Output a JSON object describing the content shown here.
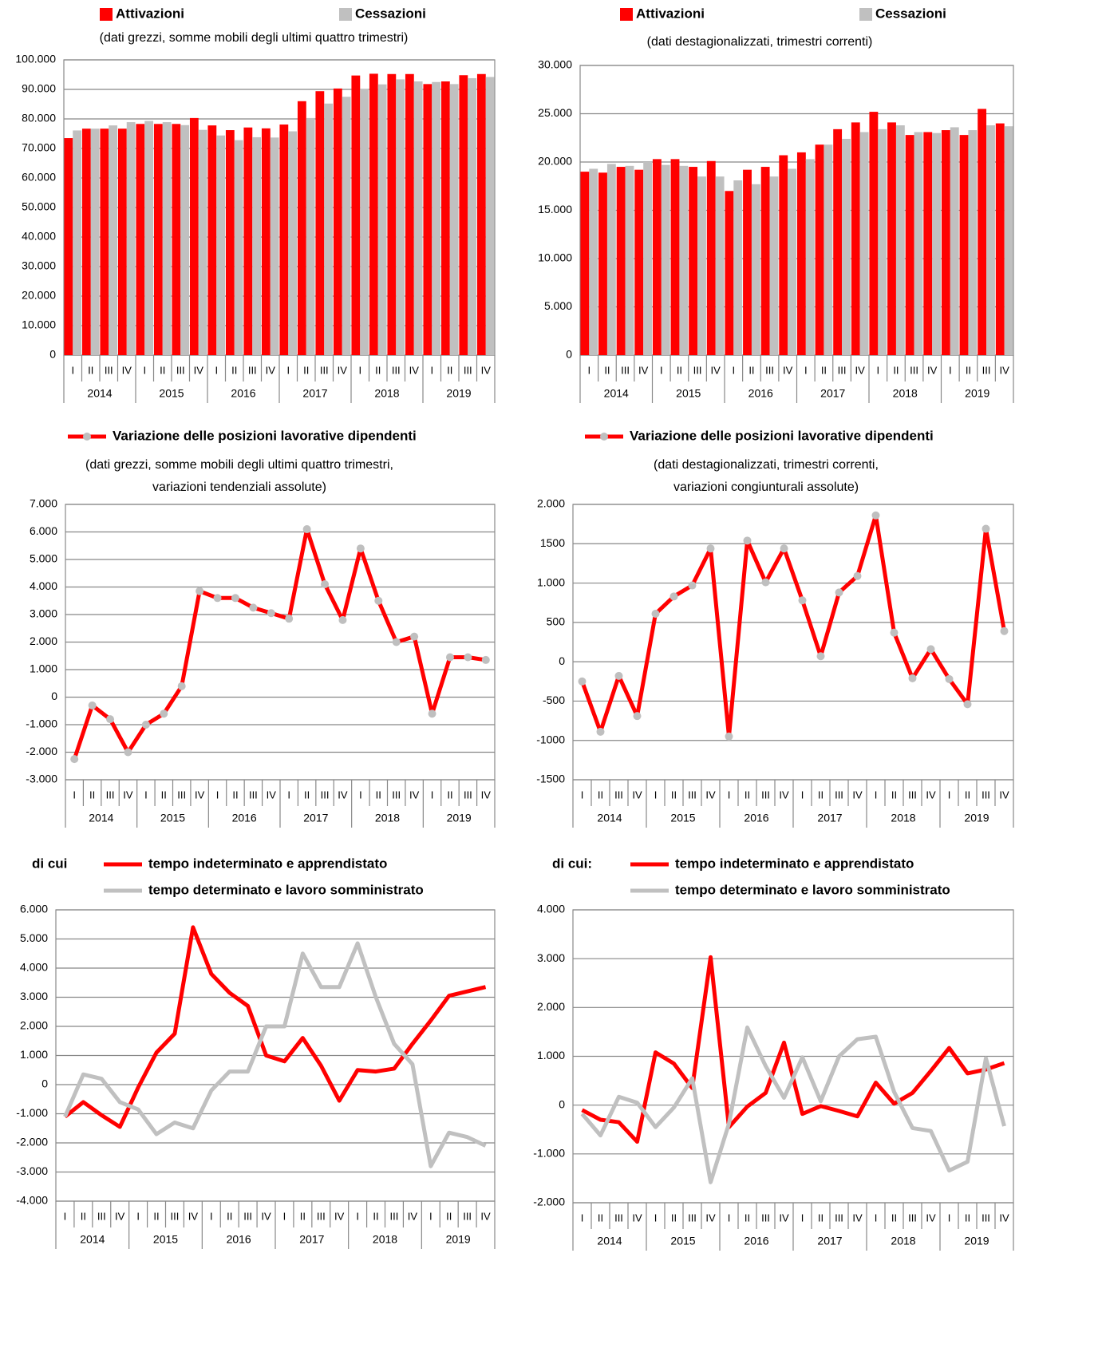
{
  "chart_data": [
    {
      "type": "bar",
      "subtitle": [
        "(dati grezzi, somme mobili degli ultimi quattro trimestri)"
      ],
      "categories": [
        "I",
        "II",
        "III",
        "IV",
        "I",
        "II",
        "III",
        "IV",
        "I",
        "II",
        "III",
        "IV",
        "I",
        "II",
        "III",
        "IV",
        "I",
        "II",
        "III",
        "IV",
        "I",
        "II",
        "III",
        "IV"
      ],
      "groups": [
        "2014",
        "2015",
        "2016",
        "2017",
        "2018",
        "2019"
      ],
      "series": [
        {
          "name": "Attivazioni",
          "color": "#ff0000",
          "values": [
            73500,
            76700,
            76700,
            76700,
            78300,
            78300,
            78300,
            80300,
            77800,
            76200,
            77100,
            76800,
            78100,
            86000,
            89400,
            90300,
            94700,
            95300,
            95200,
            95200,
            91800,
            92700,
            94800,
            95200
          ]
        },
        {
          "name": "Cessazioni",
          "color": "#c0c0c0",
          "values": [
            76100,
            76700,
            77800,
            78900,
            79300,
            78900,
            77900,
            76300,
            74400,
            72800,
            73800,
            73700,
            75800,
            80300,
            85200,
            87500,
            90100,
            91700,
            93400,
            92700,
            92500,
            91800,
            93800,
            94200
          ]
        }
      ],
      "ylim": [
        0,
        100000
      ],
      "yticks": [
        0,
        {
          "value": 10000,
          "label": "10.000"
        },
        {
          "value": 20000,
          "label": "20.000"
        },
        {
          "value": 30000,
          "label": "30.000"
        },
        {
          "value": 40000,
          "label": "40.000"
        },
        {
          "value": 50000,
          "label": "50.000"
        },
        {
          "value": 60000,
          "label": "60.000"
        },
        {
          "value": 70000,
          "label": "70.000"
        },
        {
          "value": 80000,
          "label": "80.000"
        },
        {
          "value": 90000,
          "label": "90.000"
        },
        {
          "value": 100000,
          "label": "100.000"
        }
      ],
      "grid": true
    },
    {
      "type": "bar",
      "subtitle": [
        "(dati destagionalizzati, trimestri correnti)"
      ],
      "categories": [
        "I",
        "II",
        "III",
        "IV",
        "I",
        "II",
        "III",
        "IV",
        "I",
        "II",
        "III",
        "IV",
        "I",
        "II",
        "III",
        "IV",
        "I",
        "II",
        "III",
        "IV",
        "I",
        "II",
        "III",
        "IV"
      ],
      "groups": [
        "2014",
        "2015",
        "2016",
        "2017",
        "2018",
        "2019"
      ],
      "series": [
        {
          "name": "Attivazioni",
          "color": "#ff0000",
          "values": [
            19000,
            18900,
            19500,
            19200,
            20300,
            20300,
            19500,
            20100,
            17000,
            19200,
            19500,
            20700,
            21000,
            21800,
            23400,
            24100,
            25200,
            24100,
            22800,
            23100,
            23300,
            22800,
            25500,
            24000
          ]
        },
        {
          "name": "Cessazioni",
          "color": "#c0c0c0",
          "values": [
            19300,
            19800,
            19600,
            20000,
            19700,
            19600,
            18500,
            18500,
            18100,
            17700,
            18500,
            19300,
            20300,
            21800,
            22400,
            23100,
            23400,
            23800,
            23100,
            23000,
            23600,
            23300,
            23800,
            23700
          ]
        }
      ],
      "ylim": [
        0,
        30000
      ],
      "yticks": [
        0,
        {
          "value": 5000,
          "label": "5.000"
        },
        {
          "value": 10000,
          "label": "10.000"
        },
        {
          "value": 15000,
          "label": "15.000"
        },
        {
          "value": 20000,
          "label": "20.000"
        },
        {
          "value": 25000,
          "label": "25.000"
        },
        {
          "value": 30000,
          "label": "30.000"
        }
      ],
      "grid": true
    },
    {
      "type": "line",
      "subtitle": [
        "(dati grezzi, somme mobili degli ultimi quattro trimestri,",
        "variazioni tendenziali assolute)"
      ],
      "categories": [
        "I",
        "II",
        "III",
        "IV",
        "I",
        "II",
        "III",
        "IV",
        "I",
        "II",
        "III",
        "IV",
        "I",
        "II",
        "III",
        "IV",
        "I",
        "II",
        "III",
        "IV",
        "I",
        "II",
        "III",
        "IV"
      ],
      "groups": [
        "2014",
        "2015",
        "2016",
        "2017",
        "2018",
        "2019"
      ],
      "markers": true,
      "marker_color": "#bfbfbf",
      "series": [
        {
          "name": "Variazione delle posizioni lavorative dipendenti",
          "color": "#ff0000",
          "values": [
            -2250,
            -300,
            -800,
            -2000,
            -1000,
            -600,
            400,
            3850,
            3600,
            3600,
            3250,
            3050,
            2850,
            6100,
            4100,
            2800,
            5400,
            3500,
            2000,
            2200,
            -600,
            1450,
            1450,
            1350
          ]
        }
      ],
      "ylim": [
        -3000,
        7000
      ],
      "yticks": [
        {
          "value": -3000,
          "label": "-3.000"
        },
        {
          "value": -2000,
          "label": "-2.000"
        },
        {
          "value": -1000,
          "label": "-1.000"
        },
        0,
        {
          "value": 1000,
          "label": "1.000"
        },
        {
          "value": 2000,
          "label": "2.000"
        },
        {
          "value": 3000,
          "label": "3.000"
        },
        {
          "value": 4000,
          "label": "4.000"
        },
        {
          "value": 5000,
          "label": "5.000"
        },
        {
          "value": 6000,
          "label": "6.000"
        },
        {
          "value": 7000,
          "label": "7.000"
        }
      ],
      "grid": true
    },
    {
      "type": "line",
      "subtitle": [
        "(dati destagionalizzati, trimestri correnti,",
        "variazioni congiunturali assolute)"
      ],
      "categories": [
        "I",
        "II",
        "III",
        "IV",
        "I",
        "II",
        "III",
        "IV",
        "I",
        "II",
        "III",
        "IV",
        "I",
        "II",
        "III",
        "IV",
        "I",
        "II",
        "III",
        "IV",
        "I",
        "II",
        "III",
        "IV"
      ],
      "groups": [
        "2014",
        "2015",
        "2016",
        "2017",
        "2018",
        "2019"
      ],
      "markers": true,
      "marker_color": "#bfbfbf",
      "series": [
        {
          "name": "Variazione delle posizioni lavorative dipendenti",
          "color": "#ff0000",
          "values": [
            -250,
            -890,
            -180,
            -690,
            610,
            830,
            970,
            1440,
            -950,
            1540,
            1010,
            1440,
            780,
            70,
            880,
            1090,
            1860,
            370,
            -210,
            160,
            -220,
            -540,
            1690,
            390
          ]
        }
      ],
      "ylim": [
        -1500,
        2000
      ],
      "yticks": [
        -1500,
        -1000,
        -500,
        0,
        500,
        {
          "value": 1000,
          "label": "1.000"
        },
        1500,
        {
          "value": 2000,
          "label": "2.000"
        }
      ],
      "grid": true
    },
    {
      "type": "line",
      "note": "di cui",
      "categories": [
        "I",
        "II",
        "III",
        "IV",
        "I",
        "II",
        "III",
        "IV",
        "I",
        "II",
        "III",
        "IV",
        "I",
        "II",
        "III",
        "IV",
        "I",
        "II",
        "III",
        "IV",
        "I",
        "II",
        "III",
        "IV"
      ],
      "groups": [
        "2014",
        "2015",
        "2016",
        "2017",
        "2018",
        "2019"
      ],
      "series": [
        {
          "name": "tempo indeterminato e apprendistato",
          "color": "#ff0000",
          "values": [
            -1100,
            -600,
            -1050,
            -1450,
            -100,
            1100,
            1750,
            5400,
            3800,
            3150,
            2700,
            1000,
            800,
            1600,
            650,
            -550,
            500,
            450,
            550,
            1400,
            2200,
            3050,
            3200,
            3350
          ]
        },
        {
          "name": "tempo determinato e lavoro somministrato",
          "color": "#c0c0c0",
          "values": [
            -1100,
            350,
            200,
            -600,
            -850,
            -1700,
            -1300,
            -1500,
            -200,
            450,
            450,
            2000,
            2000,
            4500,
            3350,
            3350,
            4850,
            3000,
            1400,
            700,
            -2800,
            -1650,
            -1800,
            -2100
          ]
        }
      ],
      "ylim": [
        -4000,
        6000
      ],
      "yticks": [
        {
          "value": -4000,
          "label": "-4.000"
        },
        {
          "value": -3000,
          "label": "-3.000"
        },
        {
          "value": -2000,
          "label": "-2.000"
        },
        {
          "value": -1000,
          "label": "-1.000"
        },
        0,
        {
          "value": 1000,
          "label": "1.000"
        },
        {
          "value": 2000,
          "label": "2.000"
        },
        {
          "value": 3000,
          "label": "3.000"
        },
        {
          "value": 4000,
          "label": "4.000"
        },
        {
          "value": 5000,
          "label": "5.000"
        },
        {
          "value": 6000,
          "label": "6.000"
        }
      ],
      "grid": true
    },
    {
      "type": "line",
      "note": "di cui:",
      "categories": [
        "I",
        "II",
        "III",
        "IV",
        "I",
        "II",
        "III",
        "IV",
        "I",
        "II",
        "III",
        "IV",
        "I",
        "II",
        "III",
        "IV",
        "I",
        "II",
        "III",
        "IV",
        "I",
        "II",
        "III",
        "IV"
      ],
      "groups": [
        "2014",
        "2015",
        "2016",
        "2017",
        "2018",
        "2019"
      ],
      "series": [
        {
          "name": "tempo indeterminato e apprendistato",
          "color": "#ff0000",
          "values": [
            -100,
            -300,
            -350,
            -750,
            1080,
            850,
            350,
            3030,
            -450,
            -30,
            250,
            1280,
            -180,
            -20,
            -120,
            -230,
            460,
            30,
            250,
            700,
            1170,
            650,
            730,
            860
          ]
        },
        {
          "name": "tempo determinato e lavoro somministrato",
          "color": "#c0c0c0",
          "values": [
            -180,
            -620,
            170,
            50,
            -450,
            -50,
            550,
            -1580,
            -380,
            1590,
            800,
            150,
            980,
            80,
            1000,
            1350,
            1400,
            270,
            -470,
            -530,
            -1340,
            -1160,
            960,
            -430
          ]
        }
      ],
      "ylim": [
        -2000,
        4000
      ],
      "yticks": [
        {
          "value": -2000,
          "label": "-2.000"
        },
        {
          "value": -1000,
          "label": "-1.000"
        },
        0,
        {
          "value": 1000,
          "label": "1.000"
        },
        {
          "value": 2000,
          "label": "2.000"
        },
        {
          "value": 3000,
          "label": "3.000"
        },
        {
          "value": 4000,
          "label": "4.000"
        }
      ],
      "grid": true
    }
  ]
}
